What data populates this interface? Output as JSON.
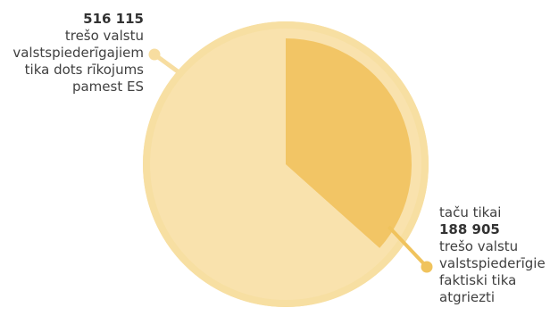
{
  "chart_data": {
    "type": "pie",
    "title": "",
    "slices": [
      {
        "key": "issued",
        "value": 516115,
        "value_text": "516 115",
        "lines": [
          "trešo valstu",
          "valstspiederīgajiem",
          "tika dots rīkojums",
          "pamest ES"
        ]
      },
      {
        "key": "returned",
        "value": 188905,
        "value_text": "188 905",
        "prefix": "taču tikai",
        "lines": [
          "trešo valstu",
          "valstspiederīgie",
          "faktiski tika",
          "atgriezti"
        ]
      }
    ],
    "colors": {
      "background_disc": "#f9e2ad",
      "outer_ring": "#f7dfa2",
      "returned_slice": "#f2c565",
      "returned_dot": "#f0c35d",
      "connector": "#f7dda0"
    }
  }
}
